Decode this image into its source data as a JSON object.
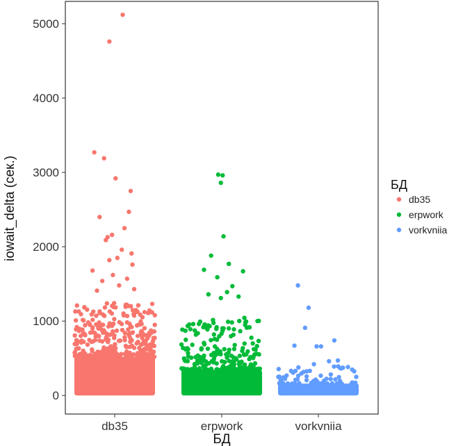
{
  "chart_data": {
    "type": "scatter",
    "title": "",
    "xlabel": "БД",
    "ylabel": "iowait_delta (сек.)",
    "categories": [
      "db35",
      "erpwork",
      "vorkvniia"
    ],
    "ylim": [
      -250,
      5300
    ],
    "yticks": [
      0,
      1000,
      2000,
      3000,
      4000,
      5000
    ],
    "grid": false,
    "legend": {
      "title": "БД",
      "position": "right"
    },
    "colors": {
      "db35": "#F8766D",
      "erpwork": "#00BA38",
      "vorkvniia": "#619CFF"
    },
    "series": [
      {
        "name": "db35",
        "bulk_max": 520,
        "points": [
          {
            "x": 0.09,
            "y": 5120
          },
          {
            "x": -0.06,
            "y": 4760
          },
          {
            "x": -0.23,
            "y": 3270
          },
          {
            "x": -0.12,
            "y": 3190
          },
          {
            "x": 0.01,
            "y": 2920
          },
          {
            "x": -0.17,
            "y": 2400
          },
          {
            "x": 0.18,
            "y": 2750
          },
          {
            "x": 0.16,
            "y": 2470
          },
          {
            "x": 0.11,
            "y": 2250
          },
          {
            "x": -0.08,
            "y": 2130
          },
          {
            "x": -0.03,
            "y": 2160
          },
          {
            "x": -0.1,
            "y": 2090
          },
          {
            "x": -0.25,
            "y": 1680
          },
          {
            "x": 0.08,
            "y": 1960
          },
          {
            "x": 0.19,
            "y": 1910
          },
          {
            "x": 0.03,
            "y": 1850
          },
          {
            "x": -0.06,
            "y": 1820
          },
          {
            "x": 0.2,
            "y": 1760
          },
          {
            "x": -0.02,
            "y": 1620
          },
          {
            "x": 0.14,
            "y": 1570
          },
          {
            "x": -0.14,
            "y": 1540
          },
          {
            "x": 0.05,
            "y": 1480
          },
          {
            "x": 0.22,
            "y": 1430
          },
          {
            "x": -0.2,
            "y": 1410
          }
        ]
      },
      {
        "name": "erpwork",
        "bulk_max": 340,
        "points": [
          {
            "x": -0.04,
            "y": 2970
          },
          {
            "x": 0.01,
            "y": 2960
          },
          {
            "x": -0.01,
            "y": 2860
          },
          {
            "x": 0.02,
            "y": 2140
          },
          {
            "x": -0.12,
            "y": 1880
          },
          {
            "x": 0.08,
            "y": 1770
          },
          {
            "x": -0.2,
            "y": 1690
          },
          {
            "x": 0.24,
            "y": 1670
          },
          {
            "x": -0.05,
            "y": 1590
          },
          {
            "x": 0.12,
            "y": 1470
          },
          {
            "x": 0.06,
            "y": 1390
          },
          {
            "x": -0.15,
            "y": 1360
          },
          {
            "x": 0.19,
            "y": 1330
          },
          {
            "x": -0.01,
            "y": 1310
          }
        ]
      },
      {
        "name": "vorkvniia",
        "bulk_max": 160,
        "points": [
          {
            "x": -0.23,
            "y": 1480
          },
          {
            "x": -0.11,
            "y": 1180
          },
          {
            "x": -0.15,
            "y": 910
          },
          {
            "x": 0.18,
            "y": 740
          },
          {
            "x": -0.27,
            "y": 670
          },
          {
            "x": 0.03,
            "y": 660
          },
          {
            "x": -0.02,
            "y": 660
          },
          {
            "x": 0.22,
            "y": 470
          },
          {
            "x": 0.12,
            "y": 460
          },
          {
            "x": -0.05,
            "y": 420
          }
        ]
      }
    ]
  }
}
